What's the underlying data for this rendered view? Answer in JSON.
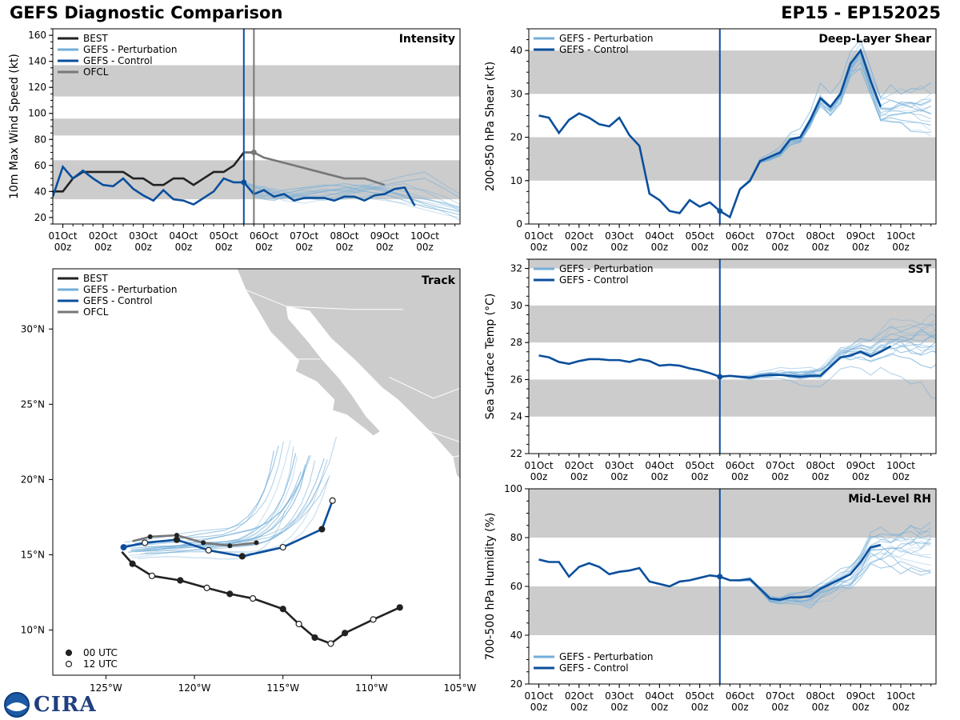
{
  "header": {
    "title": "GEFS Diagnostic Comparison",
    "storm": "EP15 - EP152025"
  },
  "logo": {
    "text": "CIRA",
    "icon": "noaa-cira-logo-icon"
  },
  "colors": {
    "best": "#222222",
    "perturbation": "#74aed8",
    "control": "#0b4f9c",
    "ofcl": "#777777",
    "band": "#cccccc",
    "land": "#cccccc"
  },
  "time_axis": {
    "range_hours": [
      -6,
      237
    ],
    "analysis_hour": 108,
    "ofcl_marker_hour": 114,
    "ticks": [
      {
        "h": 0,
        "day": "01Oct",
        "hour": "00z"
      },
      {
        "h": 24,
        "day": "02Oct",
        "hour": "00z"
      },
      {
        "h": 48,
        "day": "03Oct",
        "hour": "00z"
      },
      {
        "h": 72,
        "day": "04Oct",
        "hour": "00z"
      },
      {
        "h": 96,
        "day": "05Oct",
        "hour": "00z"
      },
      {
        "h": 120,
        "day": "06Oct",
        "hour": "00z"
      },
      {
        "h": 144,
        "day": "07Oct",
        "hour": "00z"
      },
      {
        "h": 168,
        "day": "08Oct",
        "hour": "00z"
      },
      {
        "h": 192,
        "day": "09Oct",
        "hour": "00z"
      },
      {
        "h": 216,
        "day": "10Oct",
        "hour": "00z"
      }
    ]
  },
  "chart_data": [
    {
      "id": "intensity",
      "type": "line",
      "title": "Intensity",
      "ylabel": "10m Max Wind Speed (kt)",
      "ylim": [
        15,
        165
      ],
      "yticks": [
        20,
        40,
        60,
        80,
        100,
        120,
        140,
        160
      ],
      "bands": [
        [
          34,
          64
        ],
        [
          83,
          96
        ],
        [
          113,
          137
        ]
      ],
      "legend": [
        "BEST",
        "GEFS - Perturbation",
        "GEFS - Control",
        "OFCL"
      ],
      "legend_position": "top-left",
      "series": [
        {
          "name": "BEST",
          "x": [
            -6,
            0,
            6,
            12,
            18,
            24,
            30,
            36,
            42,
            48,
            54,
            60,
            66,
            72,
            78,
            84,
            90,
            96,
            102,
            108,
            114
          ],
          "y": [
            40,
            40,
            50,
            55,
            55,
            55,
            55,
            55,
            50,
            50,
            45,
            45,
            50,
            50,
            45,
            50,
            55,
            55,
            60,
            70,
            70
          ]
        },
        {
          "name": "GEFS - Control",
          "x": [
            -6,
            0,
            6,
            12,
            18,
            24,
            30,
            36,
            42,
            48,
            54,
            60,
            66,
            72,
            78,
            84,
            90,
            96,
            102,
            108,
            114,
            120,
            126,
            132,
            138,
            144,
            150,
            156,
            162,
            168,
            174,
            180,
            186,
            192,
            198,
            204,
            210
          ],
          "y": [
            36,
            59,
            50,
            56,
            50,
            45,
            44,
            50,
            42,
            37,
            33,
            41,
            34,
            33,
            30,
            35,
            40,
            50,
            47,
            47,
            38,
            41,
            36,
            38,
            33,
            35,
            35,
            35,
            33,
            36,
            36,
            33,
            37,
            38,
            42,
            43,
            29
          ]
        },
        {
          "name": "OFCL",
          "x": [
            108,
            114,
            120,
            132,
            144,
            156,
            168,
            180,
            192
          ],
          "y": [
            70,
            70,
            66,
            62,
            58,
            54,
            50,
            50,
            45
          ]
        }
      ],
      "perturbation_members": [
        [
          47,
          40,
          42,
          38,
          36,
          40,
          42,
          41,
          38,
          34,
          30,
          26,
          22,
          20
        ],
        [
          47,
          44,
          40,
          37,
          35,
          38,
          40,
          43,
          45,
          42,
          36,
          30,
          24,
          18
        ],
        [
          47,
          38,
          36,
          39,
          41,
          43,
          45,
          44,
          40,
          38,
          33,
          28,
          25,
          22
        ],
        [
          47,
          42,
          44,
          41,
          37,
          35,
          33,
          37,
          41,
          44,
          46,
          40,
          32,
          25
        ],
        [
          47,
          36,
          34,
          33,
          36,
          39,
          41,
          40,
          42,
          45,
          48,
          50,
          42,
          35
        ],
        [
          47,
          41,
          39,
          36,
          33,
          31,
          34,
          38,
          40,
          37,
          35,
          32,
          29,
          26
        ],
        [
          47,
          45,
          43,
          40,
          38,
          36,
          37,
          39,
          41,
          43,
          40,
          35,
          30,
          27
        ],
        [
          47,
          39,
          37,
          35,
          38,
          42,
          44,
          46,
          44,
          41,
          37,
          34,
          31,
          28
        ],
        [
          47,
          43,
          41,
          42,
          40,
          37,
          35,
          34,
          36,
          39,
          43,
          41,
          36,
          30
        ],
        [
          47,
          37,
          35,
          34,
          35,
          37,
          40,
          42,
          43,
          40,
          36,
          31,
          27,
          24
        ],
        [
          47,
          40,
          38,
          37,
          39,
          41,
          39,
          37,
          35,
          33,
          31,
          29,
          27,
          25
        ],
        [
          47,
          44,
          42,
          39,
          36,
          34,
          36,
          40,
          44,
          48,
          52,
          55,
          45,
          38
        ]
      ],
      "member_x": [
        108,
        114,
        120,
        126,
        132,
        144,
        156,
        168,
        180,
        192,
        204,
        216,
        228,
        237
      ]
    },
    {
      "id": "track",
      "type": "map",
      "title": "Track",
      "xlim": [
        -128,
        -105
      ],
      "ylim": [
        7,
        34
      ],
      "xticks": [
        {
          "v": -125,
          "label": "125°W"
        },
        {
          "v": -120,
          "label": "120°W"
        },
        {
          "v": -115,
          "label": "115°W"
        },
        {
          "v": -110,
          "label": "110°W"
        },
        {
          "v": -105,
          "label": "105°W"
        }
      ],
      "yticks": [
        {
          "v": 10,
          "label": "10°N"
        },
        {
          "v": 15,
          "label": "15°N"
        },
        {
          "v": 20,
          "label": "20°N"
        },
        {
          "v": 25,
          "label": "25°N"
        },
        {
          "v": 30,
          "label": "30°N"
        }
      ],
      "legend": [
        "BEST",
        "GEFS - Perturbation",
        "GEFS - Control",
        "OFCL"
      ],
      "marker_legend": [
        "00 UTC",
        "12 UTC"
      ],
      "best_track": [
        [
          -108.4,
          11.5
        ],
        [
          -109.9,
          10.7
        ],
        [
          -111.5,
          9.8
        ],
        [
          -112.3,
          9.1
        ],
        [
          -113.2,
          9.5
        ],
        [
          -114.1,
          10.4
        ],
        [
          -115.0,
          11.4
        ],
        [
          -116.7,
          12.1
        ],
        [
          -118.0,
          12.4
        ],
        [
          -119.3,
          12.8
        ],
        [
          -120.8,
          13.3
        ],
        [
          -122.4,
          13.6
        ],
        [
          -123.5,
          14.4
        ],
        [
          -124.1,
          15.2
        ]
      ],
      "control_track": [
        [
          -112.2,
          18.6
        ],
        [
          -112.8,
          16.7
        ],
        [
          -115.0,
          15.5
        ],
        [
          -117.3,
          14.9
        ],
        [
          -119.2,
          15.3
        ],
        [
          -121.0,
          16.0
        ],
        [
          -122.8,
          15.8
        ],
        [
          -124.0,
          15.5
        ]
      ],
      "ofcl_track": [
        [
          -116.5,
          15.8
        ],
        [
          -118.0,
          15.6
        ],
        [
          -119.5,
          15.8
        ],
        [
          -121.0,
          16.3
        ],
        [
          -122.5,
          16.2
        ],
        [
          -123.5,
          15.9
        ]
      ]
    },
    {
      "id": "shear",
      "type": "line",
      "title": "Deep-Layer Shear",
      "ylabel": "200-850 hPa Shear (kt)",
      "ylim": [
        0,
        45
      ],
      "yticks": [
        0,
        10,
        20,
        30,
        40
      ],
      "bands": [
        [
          10,
          20
        ],
        [
          30,
          40
        ]
      ],
      "legend": [
        "GEFS - Perturbation",
        "GEFS - Control"
      ],
      "legend_position": "top-left",
      "series": [
        {
          "name": "GEFS - Control",
          "x": [
            0,
            6,
            12,
            18,
            24,
            30,
            36,
            42,
            48,
            54,
            60,
            66,
            72,
            78,
            84,
            90,
            96,
            102,
            108,
            114,
            120,
            126,
            132,
            138,
            144,
            150,
            156,
            162,
            168,
            174,
            180,
            186,
            192,
            198,
            204
          ],
          "y": [
            25,
            24.5,
            21,
            24,
            25.5,
            24.5,
            23,
            22.5,
            24.5,
            20.5,
            18,
            7,
            5.5,
            3,
            2.5,
            5.5,
            4,
            5,
            3,
            1.6,
            8,
            10,
            14.5,
            15.5,
            16.5,
            19.5,
            20,
            24,
            29,
            27,
            30,
            37,
            40,
            33,
            27
          ]
        }
      ]
    },
    {
      "id": "sst",
      "type": "line",
      "title": "SST",
      "ylabel": "Sea Surface Temp (°C)",
      "ylim": [
        22,
        32.5
      ],
      "yticks": [
        22,
        24,
        26,
        28,
        30,
        32
      ],
      "bands": [
        [
          24,
          26
        ],
        [
          28,
          30
        ],
        [
          32,
          32.5
        ]
      ],
      "legend": [
        "GEFS - Perturbation",
        "GEFS - Control"
      ],
      "legend_position": "top-left",
      "series": [
        {
          "name": "GEFS - Control",
          "x": [
            0,
            6,
            12,
            18,
            24,
            30,
            36,
            42,
            48,
            54,
            60,
            66,
            72,
            78,
            84,
            90,
            96,
            102,
            108,
            114,
            120,
            126,
            132,
            138,
            144,
            150,
            156,
            162,
            168,
            174,
            180,
            186,
            192,
            198,
            204,
            210
          ],
          "y": [
            27.3,
            27.2,
            26.95,
            26.85,
            27,
            27.1,
            27.1,
            27.05,
            27.05,
            26.95,
            27.1,
            27,
            26.75,
            26.8,
            26.75,
            26.6,
            26.5,
            26.35,
            26.15,
            26.2,
            26.15,
            26.1,
            26.2,
            26.25,
            26.25,
            26.2,
            26.15,
            26.2,
            26.2,
            26.7,
            27.2,
            27.3,
            27.5,
            27.25,
            27.5,
            27.8
          ]
        }
      ]
    },
    {
      "id": "rh",
      "type": "line",
      "title": "Mid-Level RH",
      "ylabel": "700-500 hPa Humidity (%)",
      "ylim": [
        20,
        100
      ],
      "yticks": [
        20,
        40,
        60,
        80,
        100
      ],
      "bands": [
        [
          40,
          60
        ],
        [
          80,
          100
        ]
      ],
      "legend": [
        "GEFS - Perturbation",
        "GEFS - Control"
      ],
      "legend_position": "bottom-left",
      "series": [
        {
          "name": "GEFS - Control",
          "x": [
            0,
            6,
            12,
            18,
            24,
            30,
            36,
            42,
            48,
            54,
            60,
            66,
            72,
            78,
            84,
            90,
            96,
            102,
            108,
            114,
            120,
            126,
            132,
            138,
            144,
            150,
            156,
            162,
            168,
            174,
            180,
            186,
            192,
            198,
            204
          ],
          "y": [
            71,
            70,
            70,
            64,
            68,
            69.5,
            68,
            65,
            66,
            66.5,
            67.5,
            62,
            61,
            60,
            62,
            62.5,
            63.5,
            64.5,
            64,
            62.5,
            62.5,
            63,
            59,
            55,
            54.5,
            55.5,
            55.5,
            56,
            59,
            61,
            63,
            65,
            70,
            76,
            77
          ]
        }
      ]
    }
  ]
}
